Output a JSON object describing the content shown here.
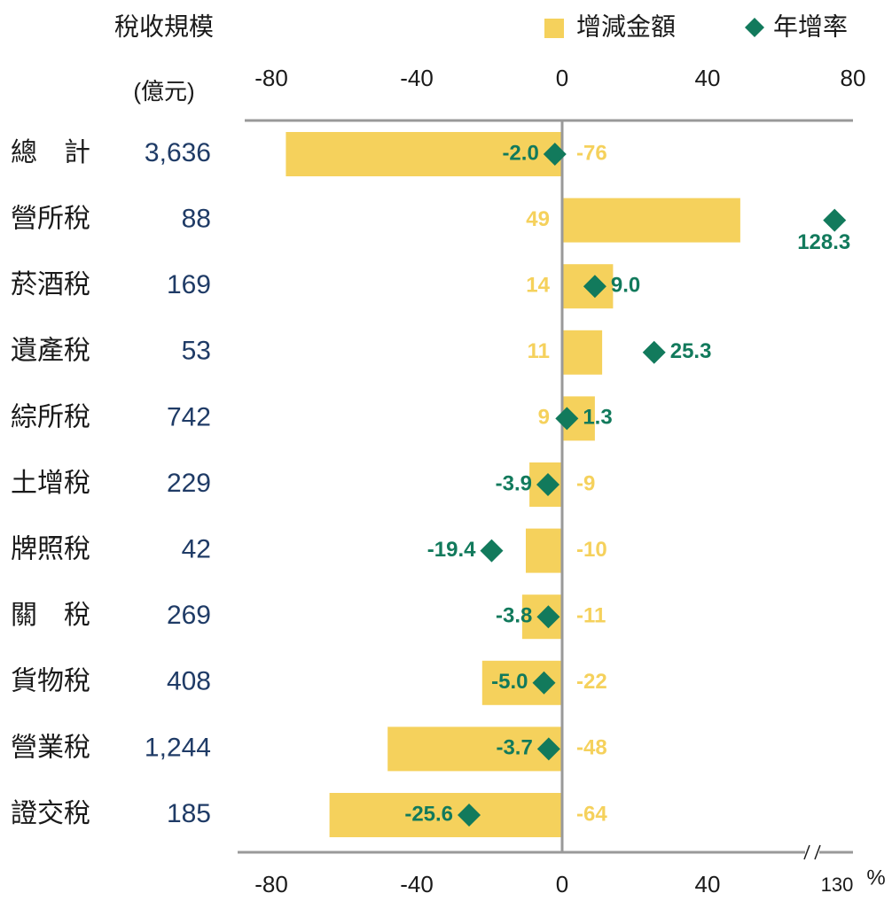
{
  "chart_data": {
    "type": "bar",
    "title_unit": "(億元)",
    "categories": [
      "總　計",
      "營所稅",
      "菸酒稅",
      "遺產稅",
      "綜所稅",
      "土增稅",
      "牌照稅",
      "關　稅",
      "貨物稅",
      "營業稅",
      "證交稅"
    ],
    "size_series": {
      "name": "稅收規模",
      "values": [
        3636,
        88,
        169,
        53,
        742,
        229,
        42,
        269,
        408,
        1244,
        185
      ],
      "value_labels": [
        "3,636",
        "88",
        "169",
        "53",
        "742",
        "229",
        "42",
        "269",
        "408",
        "1,244",
        "185"
      ],
      "color": "#1f3b66"
    },
    "series": [
      {
        "name": "增減金額",
        "color": "#f5d15c",
        "values": [
          -76,
          49,
          14,
          11,
          9,
          -9,
          -10,
          -11,
          -22,
          -48,
          -64
        ]
      },
      {
        "name": "年增率",
        "color": "#127a5c",
        "axis": "x2",
        "values": [
          -2.0,
          128.3,
          9.0,
          25.3,
          1.3,
          -3.9,
          -19.4,
          -3.8,
          -5.0,
          -3.7,
          -25.6
        ],
        "value_labels": [
          "-2.0",
          "128.3",
          "9.0",
          "25.3",
          "1.3",
          "-3.9",
          "-19.4",
          "-3.8",
          "-5.0",
          "-3.7",
          "-25.6"
        ]
      }
    ],
    "xlim": [
      -80,
      80
    ],
    "xticks": [
      -80,
      -40,
      0,
      40,
      80
    ],
    "x2lim": [
      -80,
      130
    ],
    "x2ticks": [
      -80,
      -40,
      0,
      40,
      130
    ],
    "x2_axis_break": true,
    "x2_unit": "%",
    "legend": "top-right"
  }
}
